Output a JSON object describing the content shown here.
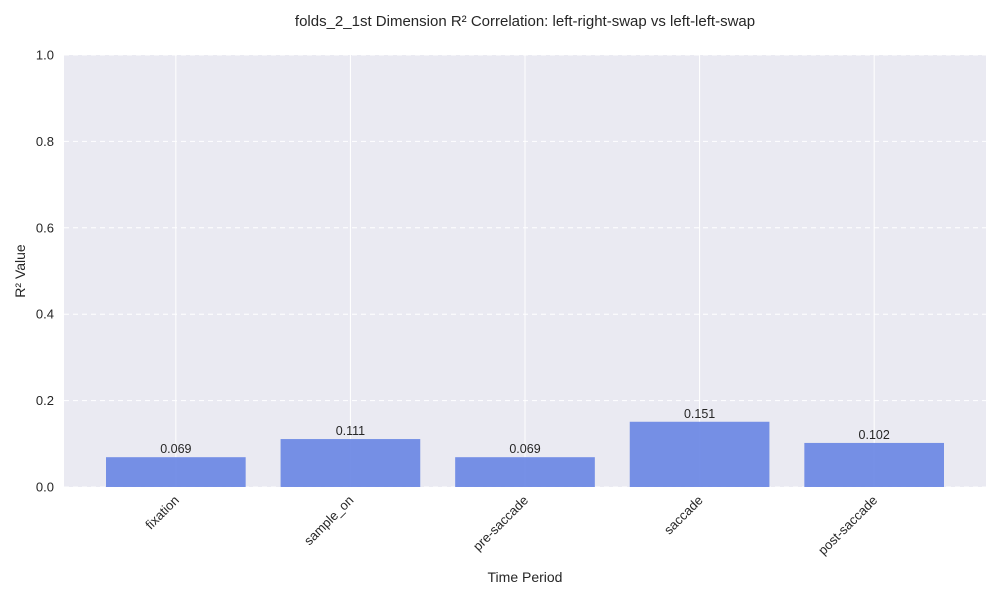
{
  "chart_data": {
    "type": "bar",
    "title": "folds_2_1st Dimension R² Correlation: left-right-swap vs left-left-swap",
    "xlabel": "Time Period",
    "ylabel": "R² Value",
    "categories": [
      "fixation",
      "sample_on",
      "pre-saccade",
      "saccade",
      "post-saccade"
    ],
    "values": [
      0.069,
      0.111,
      0.069,
      0.151,
      0.102
    ],
    "value_labels": [
      "0.069",
      "0.111",
      "0.069",
      "0.151",
      "0.102"
    ],
    "ylim": [
      0,
      1.0
    ],
    "yticks": [
      0.0,
      0.2,
      0.4,
      0.6,
      0.8,
      1.0
    ],
    "ytick_labels": [
      "0.0",
      "0.2",
      "0.4",
      "0.6",
      "0.8",
      "1.0"
    ],
    "grid": true,
    "colors": {
      "bar": "#6a87e4",
      "plot_background": "#eaeaf2",
      "grid": "#ffffff"
    }
  }
}
